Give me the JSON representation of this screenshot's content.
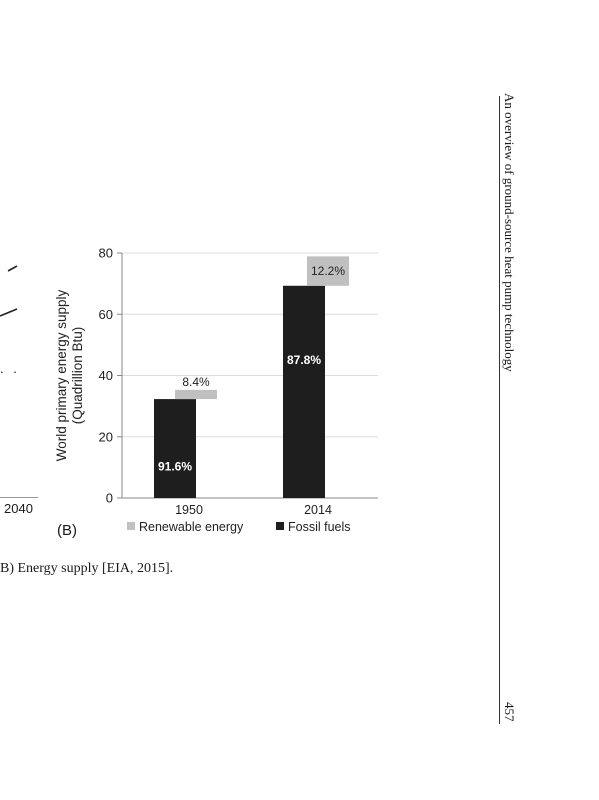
{
  "figure": {
    "panel_label": "(B)",
    "left_fragment": {
      "x_tick": "2040",
      "dots": ". ."
    },
    "caption": "B) Energy supply [EIA, 2015]."
  },
  "page": {
    "running_head": "An overview of ground-source heat pump technology",
    "number": "457"
  },
  "chart_data": {
    "type": "bar",
    "stacked": true,
    "categories": [
      "1950",
      "2014"
    ],
    "ylabel": "World primary energy supply\n(Quadrillion Btu)",
    "ylim": [
      0,
      80
    ],
    "yticks": [
      0,
      20,
      40,
      60,
      80
    ],
    "grid": true,
    "legend_placement": "bottom",
    "series": [
      {
        "name": "Fossil fuels",
        "color": "#1e1e1e",
        "values": [
          32.3,
          69.3
        ],
        "labels": [
          "91.6%",
          "87.8%"
        ]
      },
      {
        "name": "Renewable energy",
        "color": "#c0c0c0",
        "values": [
          3.0,
          9.6
        ],
        "labels": [
          "8.4%",
          "12.2%"
        ]
      }
    ]
  }
}
